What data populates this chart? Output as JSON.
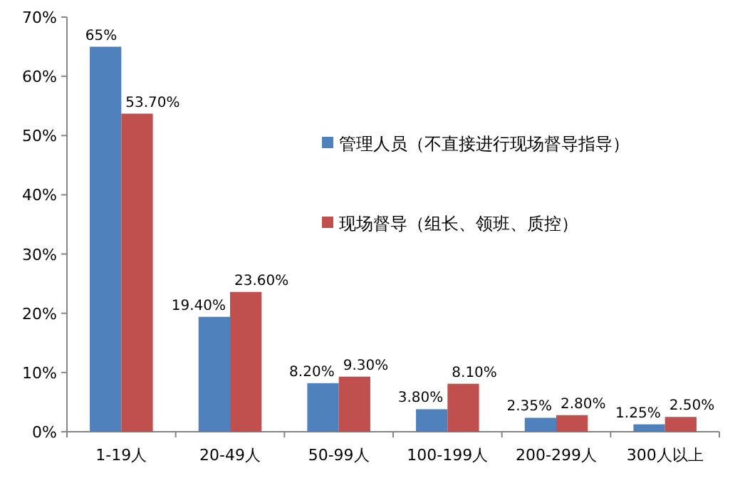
{
  "chart_data": {
    "type": "bar",
    "categories": [
      "1-19人",
      "20-49人",
      "50-99人",
      "100-199人",
      "200-299人",
      "300人以上"
    ],
    "series": [
      {
        "name": "管理人员（不直接进行现场督导指导）",
        "color": "#4f81bd",
        "values": [
          65,
          19.4,
          8.2,
          3.8,
          2.35,
          1.25
        ],
        "value_labels": [
          "65%",
          "19.40%",
          "8.20%",
          "3.80%",
          "2.35%",
          "1.25%"
        ]
      },
      {
        "name": "现场督导（组长、领班、质控）",
        "color": "#c0504d",
        "values": [
          53.7,
          23.6,
          9.3,
          8.1,
          2.8,
          2.5
        ],
        "value_labels": [
          "53.70%",
          "23.60%",
          "9.30%",
          "8.10%",
          "2.80%",
          "2.50%"
        ]
      }
    ],
    "ylim": [
      0,
      70
    ],
    "yticks": [
      {
        "value": 0,
        "label": "0%"
      },
      {
        "value": 10,
        "label": "10%"
      },
      {
        "value": 20,
        "label": "20%"
      },
      {
        "value": 30,
        "label": "30%"
      },
      {
        "value": 40,
        "label": "40%"
      },
      {
        "value": 50,
        "label": "50%"
      },
      {
        "value": 60,
        "label": "60%"
      },
      {
        "value": 70,
        "label": "70%"
      }
    ],
    "grid": false,
    "legend": "right"
  }
}
